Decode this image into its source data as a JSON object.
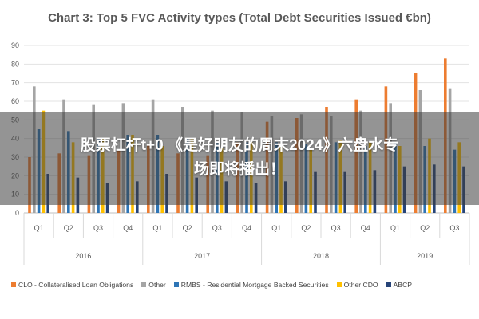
{
  "chart_data": {
    "type": "bar",
    "title": "Chart 3: Top 5 FVC Activity types (Total Debt Securities Issued €bn)",
    "xlabel": "",
    "ylabel": "",
    "ylim": [
      0,
      90
    ],
    "yticks": [
      0,
      10,
      20,
      30,
      40,
      50,
      60,
      70,
      80,
      90
    ],
    "grid": true,
    "legend": "bottom",
    "categories": [
      "Q1",
      "Q2",
      "Q3",
      "Q4",
      "Q1",
      "Q2",
      "Q3",
      "Q4",
      "Q1",
      "Q2",
      "Q3",
      "Q4",
      "Q1",
      "Q2",
      "Q3"
    ],
    "groups": [
      {
        "label": "2016",
        "count": 4
      },
      {
        "label": "2017",
        "count": 4
      },
      {
        "label": "2018",
        "count": 4
      },
      {
        "label": "2019",
        "count": 3
      }
    ],
    "series": [
      {
        "name": "CLO - Collateralised Loan Obligations",
        "color": "#ed7d31",
        "values": [
          30,
          32,
          31,
          34,
          37,
          32,
          31,
          38,
          49,
          51,
          57,
          61,
          68,
          75,
          83
        ]
      },
      {
        "name": "Other",
        "color": "#a5a5a5",
        "values": [
          68,
          61,
          58,
          59,
          61,
          57,
          55,
          54,
          52,
          53,
          52,
          55,
          59,
          66,
          67
        ]
      },
      {
        "name": "RMBS - Residential Mortgage Backed Securities",
        "color": "#2e75b6",
        "values": [
          45,
          44,
          40,
          42,
          42,
          40,
          38,
          38,
          38,
          37,
          38,
          36,
          38,
          36,
          34
        ]
      },
      {
        "name": "Other CDO",
        "color": "#ffc000",
        "values": [
          55,
          38,
          40,
          42,
          36,
          40,
          35,
          38,
          36,
          35,
          39,
          38,
          36,
          40,
          38
        ]
      },
      {
        "name": "ABCP",
        "color": "#264478",
        "values": [
          21,
          19,
          16,
          17,
          21,
          19,
          17,
          16,
          17,
          22,
          22,
          23,
          25,
          26,
          25
        ]
      }
    ]
  },
  "overlay": {
    "line1": "股票杠杆t+0 《是好朋友的周末2024》六盘水专",
    "line2": "场即将播出！"
  }
}
